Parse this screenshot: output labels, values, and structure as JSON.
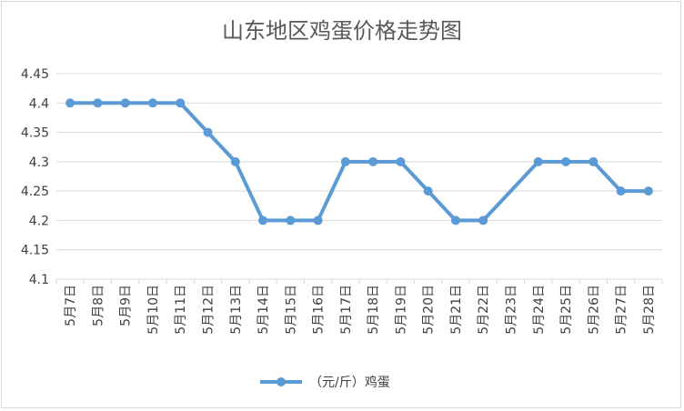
{
  "chart_data": {
    "type": "line",
    "title": "山东地区鸡蛋价格走势图",
    "xlabel": "",
    "ylabel": "",
    "categories": [
      "5月7日",
      "5月8日",
      "5月9日",
      "5月10日",
      "5月11日",
      "5月12日",
      "5月13日",
      "5月14日",
      "5月15日",
      "5月16日",
      "5月17日",
      "5月18日",
      "5月19日",
      "5月20日",
      "5月21日",
      "5月22日",
      "5月23日",
      "5月24日",
      "5月25日",
      "5月26日",
      "5月27日",
      "5月28日"
    ],
    "series": [
      {
        "name": "（元/斤）鸡蛋",
        "color": "#5b9bd5",
        "values": [
          4.4,
          4.4,
          4.4,
          4.4,
          4.4,
          4.35,
          4.3,
          4.2,
          4.2,
          4.2,
          4.3,
          4.3,
          4.3,
          4.25,
          4.2,
          4.2,
          null,
          4.3,
          4.3,
          4.3,
          4.25,
          4.25
        ]
      }
    ],
    "ylim": [
      4.1,
      4.45
    ],
    "yticks": [
      "4.1",
      "4.15",
      "4.2",
      "4.25",
      "4.3",
      "4.35",
      "4.4",
      "4.45"
    ],
    "grid": true,
    "legend_position": "bottom"
  }
}
